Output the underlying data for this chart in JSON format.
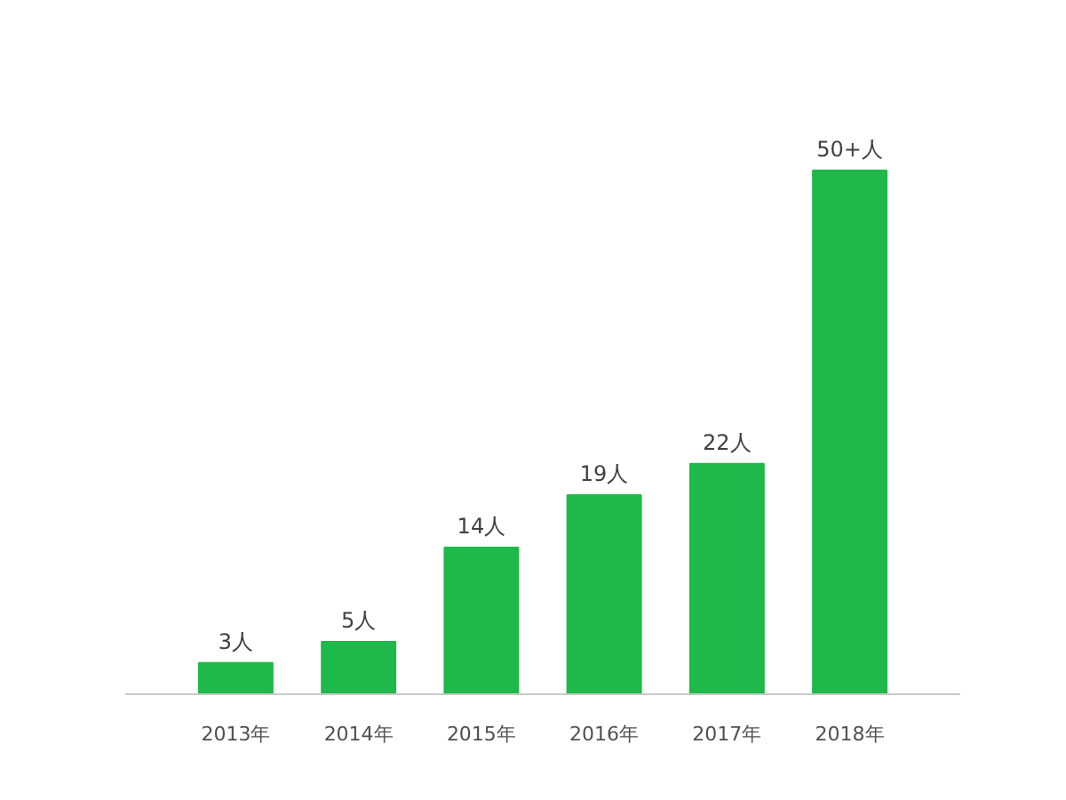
{
  "chart_data": {
    "type": "bar",
    "categories": [
      "2013年",
      "2014年",
      "2015年",
      "2016年",
      "2017年",
      "2018年"
    ],
    "values": [
      3,
      5,
      14,
      19,
      22,
      50
    ],
    "value_labels": [
      "3人",
      "5人",
      "14人",
      "19人",
      "22人",
      "50+人"
    ],
    "color": "#1fb84a",
    "tick_labels": "x"
  }
}
